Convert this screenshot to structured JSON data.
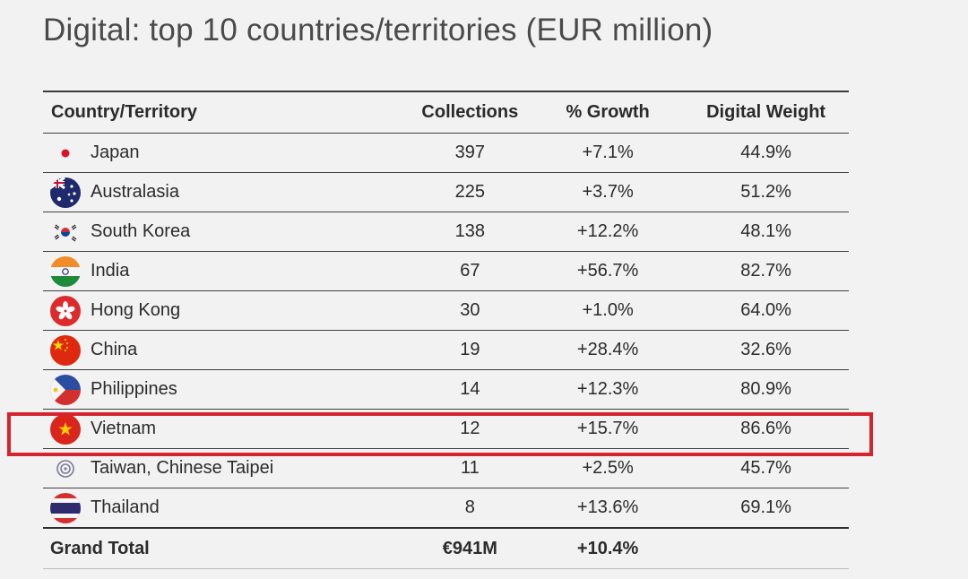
{
  "title": "Digital: top 10 countries/territories (EUR million)",
  "colors": {
    "highlight": "#d6242e"
  },
  "chart_data": {
    "type": "table",
    "columns": [
      "Country/Territory",
      "Collections",
      "% Growth",
      "Digital Weight"
    ],
    "rows": [
      {
        "country": "Japan",
        "flag": "japan-flag-icon",
        "collections": "397",
        "growth": "+7.1%",
        "weight": "44.9%"
      },
      {
        "country": "Australasia",
        "flag": "australasia-flag-icon",
        "collections": "225",
        "growth": "+3.7%",
        "weight": "51.2%"
      },
      {
        "country": "South Korea",
        "flag": "south-korea-flag-icon",
        "collections": "138",
        "growth": "+12.2%",
        "weight": "48.1%"
      },
      {
        "country": "India",
        "flag": "india-flag-icon",
        "collections": "67",
        "growth": "+56.7%",
        "weight": "82.7%"
      },
      {
        "country": "Hong Kong",
        "flag": "hong-kong-flag-icon",
        "collections": "30",
        "growth": "+1.0%",
        "weight": "64.0%"
      },
      {
        "country": "China",
        "flag": "china-flag-icon",
        "collections": "19",
        "growth": "+28.4%",
        "weight": "32.6%"
      },
      {
        "country": "Philippines",
        "flag": "philippines-flag-icon",
        "collections": "14",
        "growth": "+12.3%",
        "weight": "80.9%"
      },
      {
        "country": "Vietnam",
        "flag": "vietnam-flag-icon",
        "collections": "12",
        "growth": "+15.7%",
        "weight": "86.6%",
        "highlighted": true
      },
      {
        "country": "Taiwan, Chinese Taipei",
        "flag": "taiwan-flag-icon",
        "collections": "11",
        "growth": "+2.5%",
        "weight": "45.7%"
      },
      {
        "country": "Thailand",
        "flag": "thailand-flag-icon",
        "collections": "8",
        "growth": "+13.6%",
        "weight": "69.1%"
      }
    ],
    "total": {
      "label": "Grand Total",
      "collections": "€941M",
      "growth": "+10.4%",
      "weight": ""
    }
  }
}
